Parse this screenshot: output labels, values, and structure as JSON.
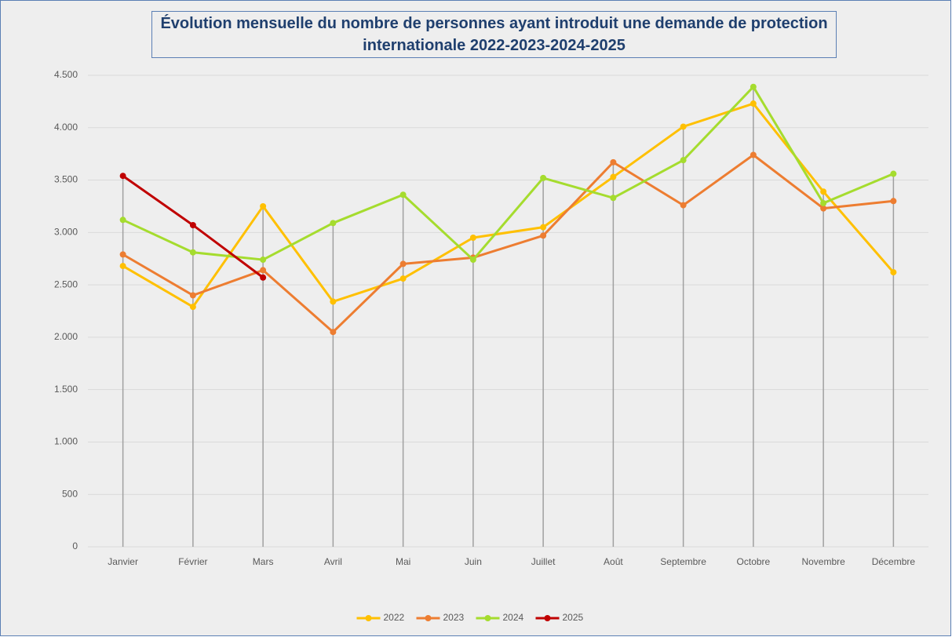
{
  "chart_data": {
    "type": "line",
    "title": "Évolution mensuelle du nombre de personnes ayant introduit une demande de protection internationale 2022-2023-2024-2025",
    "categories": [
      "Janvier",
      "Février",
      "Mars",
      "Avril",
      "Mai",
      "Juin",
      "Juillet",
      "Août",
      "Septembre",
      "Octobre",
      "Novembre",
      "Décembre"
    ],
    "series": [
      {
        "name": "2022",
        "color": "#ffc000",
        "values": [
          2680,
          2290,
          3250,
          2340,
          2560,
          2950,
          3050,
          3530,
          4010,
          4230,
          3390,
          2620
        ]
      },
      {
        "name": "2023",
        "color": "#ed7d31",
        "values": [
          2790,
          2400,
          2640,
          2050,
          2700,
          2760,
          2970,
          3670,
          3260,
          3740,
          3230,
          3300
        ]
      },
      {
        "name": "2024",
        "color": "#a5dc2e",
        "values": [
          3120,
          2810,
          2740,
          3090,
          3360,
          2740,
          3520,
          3330,
          3690,
          4390,
          3280,
          3560
        ]
      },
      {
        "name": "2025",
        "color": "#c00000",
        "values": [
          3540,
          3070,
          2570,
          null,
          null,
          null,
          null,
          null,
          null,
          null,
          null,
          null
        ]
      }
    ],
    "ylim": [
      0,
      4500
    ],
    "yticks": [
      0,
      500,
      {
        "value": 1000,
        "label": "1.000"
      },
      {
        "value": 1500,
        "label": "1.500"
      },
      {
        "value": 2000,
        "label": "2.000"
      },
      {
        "value": 2500,
        "label": "2.500"
      },
      {
        "value": 3000,
        "label": "3.000"
      },
      {
        "value": 3500,
        "label": "3.500"
      },
      {
        "value": 4000,
        "label": "4.000"
      },
      {
        "value": 4500,
        "label": "4.500"
      }
    ],
    "grid": true,
    "drop_lines": true,
    "legend": "bottom"
  }
}
